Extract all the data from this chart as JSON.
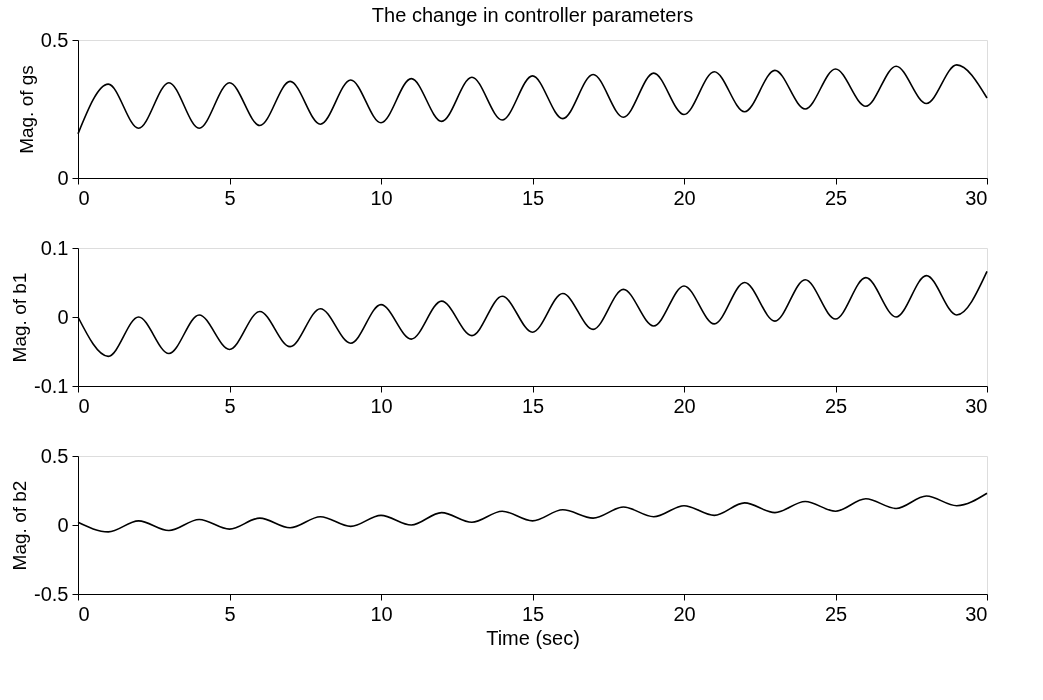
{
  "chart_data": [
    {
      "type": "line",
      "title": "The change in controller parameters",
      "ylabel": "Mag. of gs",
      "x": [
        0,
        1,
        2,
        3,
        4,
        5,
        6,
        7,
        8,
        9,
        10,
        11,
        12,
        13,
        14,
        15,
        16,
        17,
        18,
        19,
        20,
        21,
        22,
        23,
        24,
        25,
        26,
        27,
        28,
        29,
        30
      ],
      "series": [
        {
          "color": "#000000",
          "values": [
            0.16,
            0.34,
            0.18,
            0.345,
            0.18,
            0.345,
            0.19,
            0.35,
            0.195,
            0.355,
            0.2,
            0.36,
            0.205,
            0.365,
            0.21,
            0.37,
            0.215,
            0.375,
            0.22,
            0.38,
            0.23,
            0.385,
            0.24,
            0.39,
            0.25,
            0.395,
            0.26,
            0.405,
            0.27,
            0.41,
            0.29
          ]
        }
      ],
      "xlim": [
        0,
        30
      ],
      "xticks": [
        0,
        5,
        10,
        15,
        20,
        25,
        30
      ],
      "ylim": [
        0,
        0.5
      ],
      "yticks": [
        0,
        0.5
      ],
      "grid": false,
      "marker": "none",
      "line_style": "solid"
    },
    {
      "type": "line",
      "ylabel": "Mag. of b1",
      "x": [
        0,
        1,
        2,
        3,
        4,
        5,
        6,
        7,
        8,
        9,
        10,
        11,
        12,
        13,
        14,
        15,
        16,
        17,
        18,
        19,
        20,
        21,
        22,
        23,
        24,
        25,
        26,
        27,
        28,
        29,
        30
      ],
      "series": [
        {
          "color": "#000000",
          "values": [
            0,
            -0.057,
            0,
            -0.053,
            0.003,
            -0.047,
            0.008,
            -0.043,
            0.012,
            -0.038,
            0.018,
            -0.032,
            0.023,
            -0.027,
            0.03,
            -0.022,
            0.034,
            -0.018,
            0.04,
            -0.013,
            0.045,
            -0.01,
            0.05,
            -0.006,
            0.054,
            -0.003,
            0.057,
            0,
            0.06,
            0.003,
            0.066
          ]
        }
      ],
      "xlim": [
        0,
        30
      ],
      "xticks": [
        0,
        5,
        10,
        15,
        20,
        25,
        30
      ],
      "ylim": [
        -0.1,
        0.1
      ],
      "yticks": [
        -0.1,
        0,
        0.1
      ],
      "grid": false,
      "marker": "none",
      "line_style": "solid"
    },
    {
      "type": "line",
      "ylabel": "Mag. of b2",
      "xlabel": "Time (sec)",
      "x": [
        0,
        1,
        2,
        3,
        4,
        5,
        6,
        7,
        8,
        9,
        10,
        11,
        12,
        13,
        14,
        15,
        16,
        17,
        18,
        19,
        20,
        21,
        22,
        23,
        24,
        25,
        26,
        27,
        28,
        29,
        30
      ],
      "series": [
        {
          "color": "#000000",
          "values": [
            0.02,
            -0.05,
            0.03,
            -0.04,
            0.04,
            -0.03,
            0.05,
            -0.02,
            0.06,
            -0.01,
            0.07,
            0,
            0.09,
            0.02,
            0.1,
            0.03,
            0.11,
            0.05,
            0.13,
            0.06,
            0.14,
            0.07,
            0.16,
            0.09,
            0.17,
            0.1,
            0.19,
            0.12,
            0.21,
            0.14,
            0.23
          ]
        }
      ],
      "xlim": [
        0,
        30
      ],
      "xticks": [
        0,
        5,
        10,
        15,
        20,
        25,
        30
      ],
      "ylim": [
        -0.5,
        0.5
      ],
      "yticks": [
        -0.5,
        0,
        0.5
      ],
      "grid": false,
      "marker": "none",
      "line_style": "solid"
    }
  ]
}
